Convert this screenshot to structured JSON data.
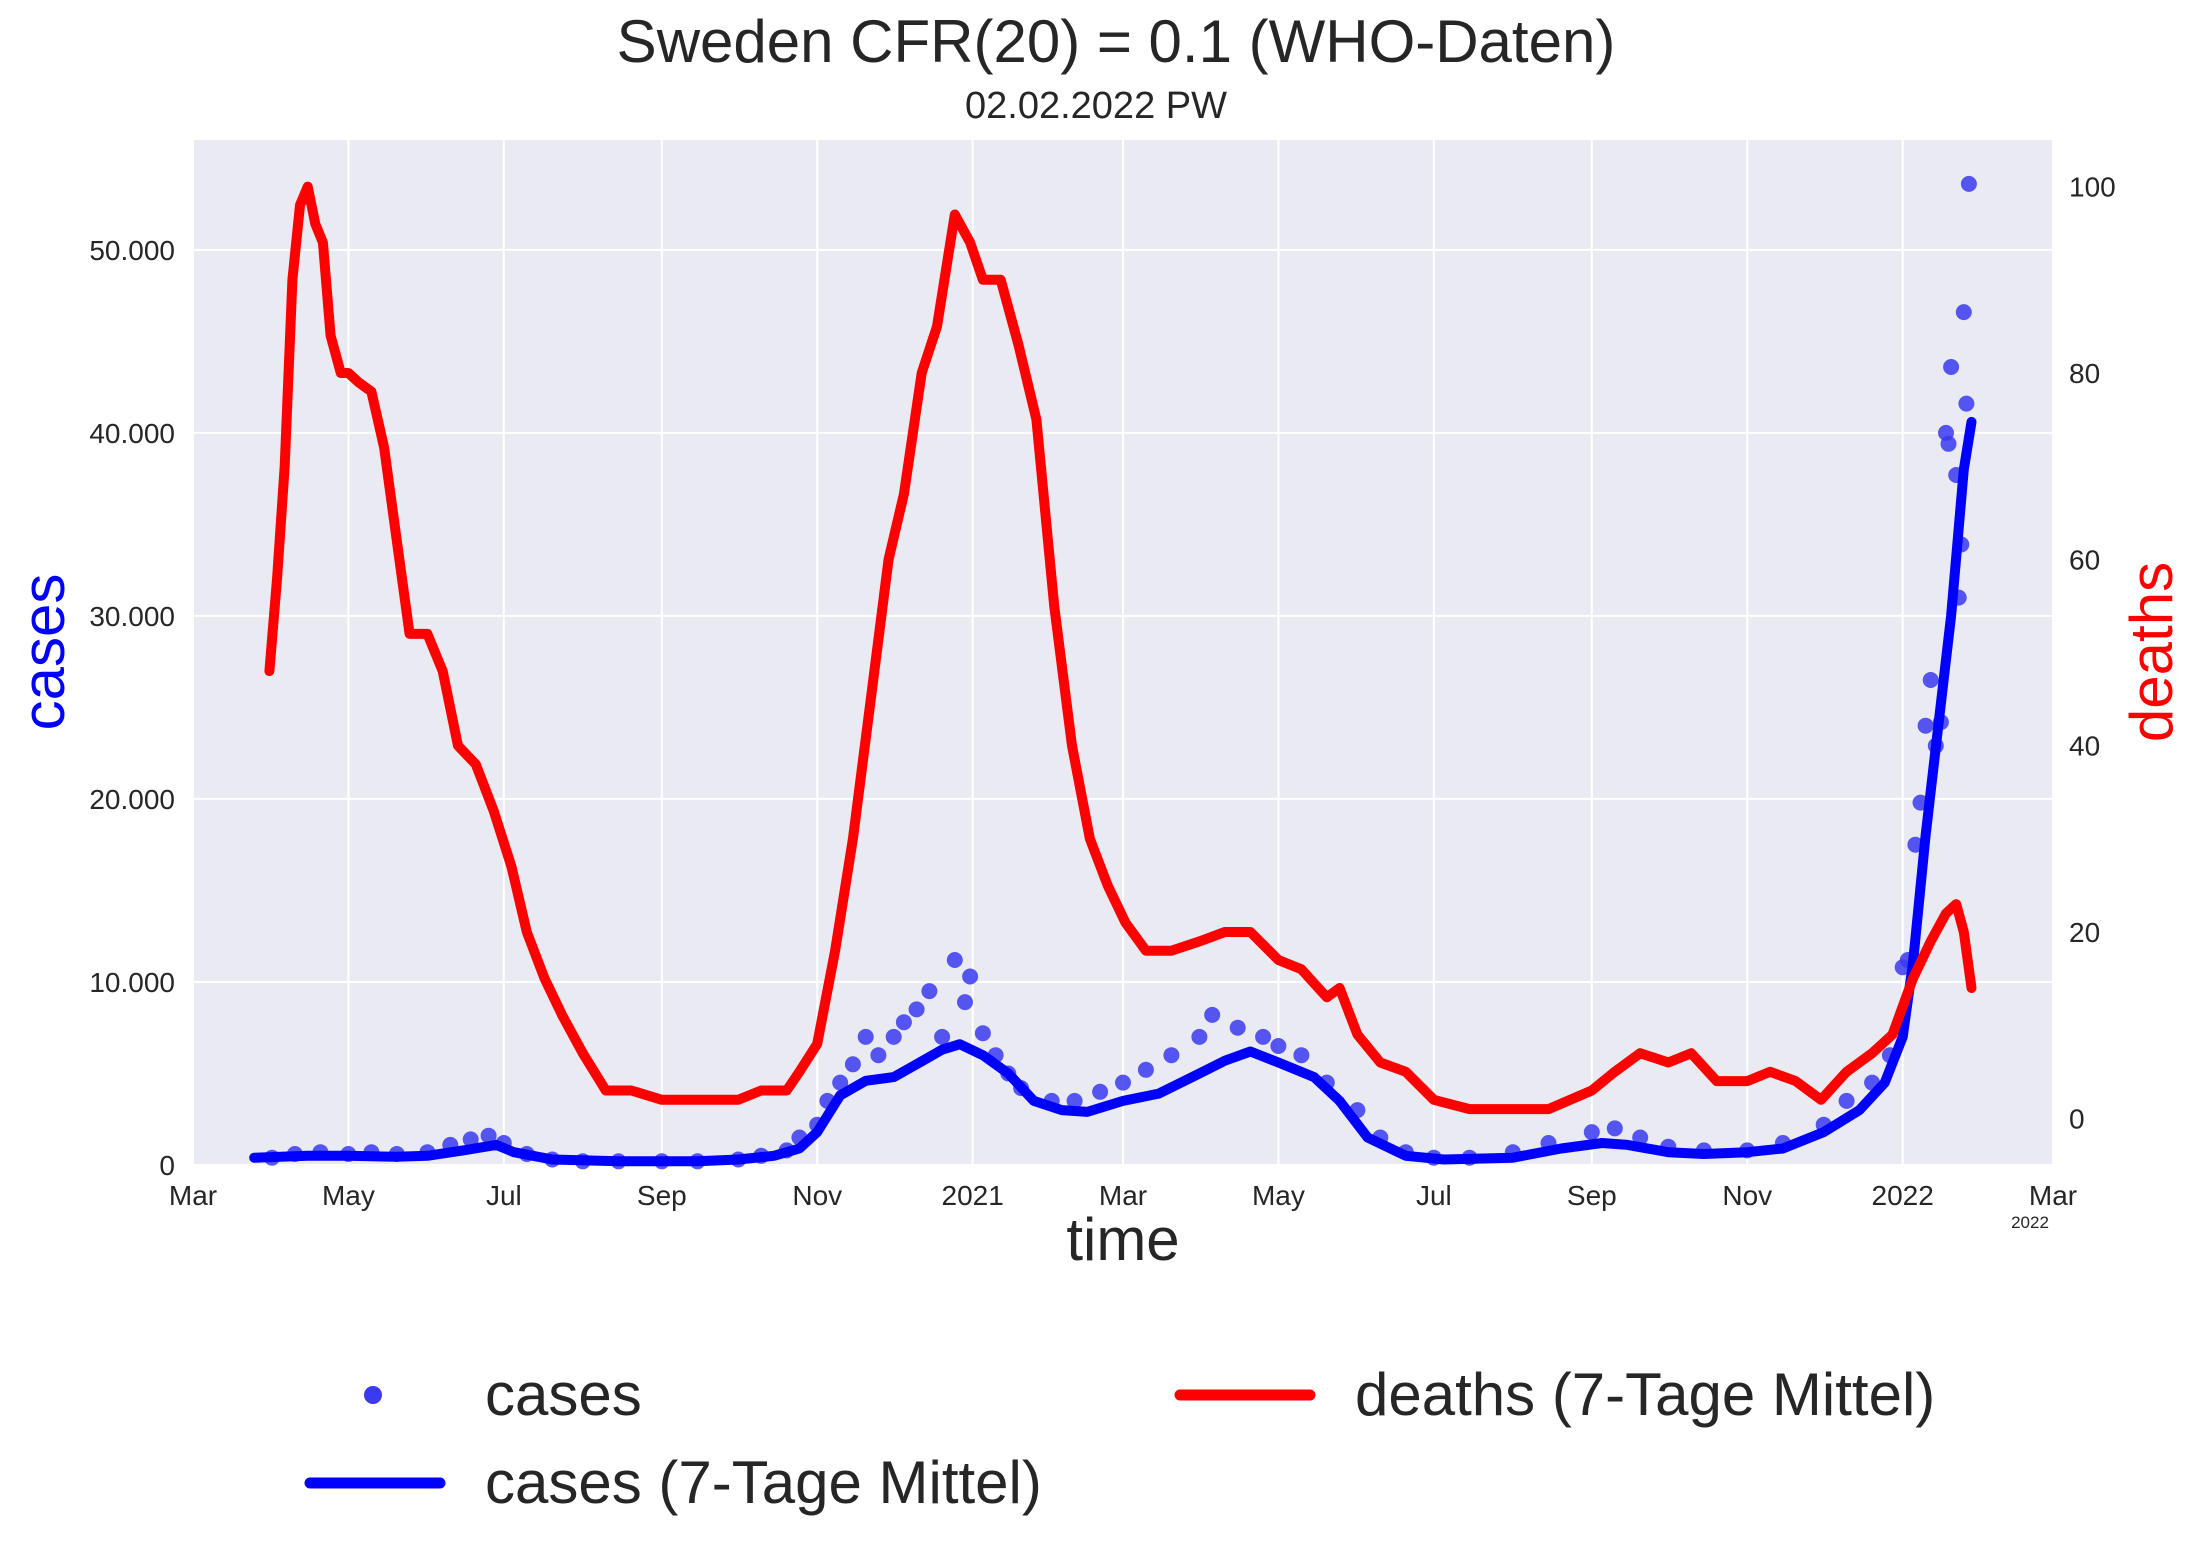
{
  "chart_data": {
    "type": "line",
    "title": "Sweden CFR(20) = 0.1  (WHO-Daten)",
    "subtitle": "02.02.2022 PW",
    "xlabel": "time",
    "ylabel_left": "cases",
    "ylabel_right": "deaths",
    "x_axis": {
      "start": "2020-03-01",
      "end": "2022-03-01",
      "ticks": [
        {
          "date": "2020-03-01",
          "label": "Mar"
        },
        {
          "date": "2020-05-01",
          "label": "May"
        },
        {
          "date": "2020-07-01",
          "label": "Jul"
        },
        {
          "date": "2020-09-01",
          "label": "Sep"
        },
        {
          "date": "2020-11-01",
          "label": "Nov"
        },
        {
          "date": "2021-01-01",
          "label": "2021"
        },
        {
          "date": "2021-03-01",
          "label": "Mar"
        },
        {
          "date": "2021-05-01",
          "label": "May"
        },
        {
          "date": "2021-07-01",
          "label": "Jul"
        },
        {
          "date": "2021-09-01",
          "label": "Sep"
        },
        {
          "date": "2021-11-01",
          "label": "Nov"
        },
        {
          "date": "2022-01-01",
          "label": "2022"
        },
        {
          "date": "2022-03-01",
          "label": "Mar"
        }
      ],
      "offset_label": "2022"
    },
    "y_left": {
      "ylim": [
        0,
        56000
      ],
      "ticks": [
        0,
        10000,
        20000,
        30000,
        40000,
        50000
      ],
      "tick_labels": [
        "0",
        "10.000",
        "20.000",
        "30.000",
        "40.000",
        "50.000"
      ]
    },
    "y_right": {
      "ylim": [
        -5,
        105
      ],
      "ticks": [
        0,
        20,
        40,
        60,
        80,
        100
      ],
      "tick_labels": [
        "0",
        "20",
        "40",
        "60",
        "80",
        "100"
      ]
    },
    "grid": true,
    "legend_placement": "below",
    "colors": {
      "cases_points": "#3a3af0",
      "cases_avg": "#0000ff",
      "deaths_avg": "#ff0000",
      "plot_background": "#eaeaf2",
      "grid": "#ffffff"
    },
    "series": [
      {
        "name": "cases",
        "kind": "scatter",
        "axis": "left",
        "points": [
          [
            "2020-04-01",
            400
          ],
          [
            "2020-04-10",
            600
          ],
          [
            "2020-04-20",
            700
          ],
          [
            "2020-05-01",
            600
          ],
          [
            "2020-05-10",
            700
          ],
          [
            "2020-05-20",
            600
          ],
          [
            "2020-06-01",
            700
          ],
          [
            "2020-06-10",
            1100
          ],
          [
            "2020-06-18",
            1400
          ],
          [
            "2020-06-25",
            1600
          ],
          [
            "2020-07-01",
            1200
          ],
          [
            "2020-07-10",
            600
          ],
          [
            "2020-07-20",
            300
          ],
          [
            "2020-08-01",
            200
          ],
          [
            "2020-08-15",
            200
          ],
          [
            "2020-09-01",
            200
          ],
          [
            "2020-09-15",
            200
          ],
          [
            "2020-10-01",
            300
          ],
          [
            "2020-10-10",
            500
          ],
          [
            "2020-10-20",
            800
          ],
          [
            "2020-10-25",
            1500
          ],
          [
            "2020-11-01",
            2200
          ],
          [
            "2020-11-05",
            3500
          ],
          [
            "2020-11-10",
            4500
          ],
          [
            "2020-11-15",
            5500
          ],
          [
            "2020-11-20",
            7000
          ],
          [
            "2020-11-25",
            6000
          ],
          [
            "2020-12-01",
            7000
          ],
          [
            "2020-12-05",
            7800
          ],
          [
            "2020-12-10",
            8500
          ],
          [
            "2020-12-15",
            9500
          ],
          [
            "2020-12-20",
            7000
          ],
          [
            "2020-12-25",
            11200
          ],
          [
            "2020-12-31",
            10300
          ],
          [
            "2020-12-29",
            8900
          ],
          [
            "2021-01-05",
            7200
          ],
          [
            "2021-01-10",
            6000
          ],
          [
            "2021-01-15",
            5000
          ],
          [
            "2021-01-20",
            4200
          ],
          [
            "2021-02-01",
            3500
          ],
          [
            "2021-02-10",
            3500
          ],
          [
            "2021-02-20",
            4000
          ],
          [
            "2021-03-01",
            4500
          ],
          [
            "2021-03-10",
            5200
          ],
          [
            "2021-03-20",
            6000
          ],
          [
            "2021-03-31",
            7000
          ],
          [
            "2021-04-05",
            8200
          ],
          [
            "2021-04-15",
            7500
          ],
          [
            "2021-04-25",
            7000
          ],
          [
            "2021-05-01",
            6500
          ],
          [
            "2021-05-10",
            6000
          ],
          [
            "2021-05-20",
            4500
          ],
          [
            "2021-06-01",
            3000
          ],
          [
            "2021-06-10",
            1500
          ],
          [
            "2021-06-20",
            700
          ],
          [
            "2021-07-01",
            400
          ],
          [
            "2021-07-15",
            400
          ],
          [
            "2021-08-01",
            700
          ],
          [
            "2021-08-15",
            1200
          ],
          [
            "2021-09-01",
            1800
          ],
          [
            "2021-09-10",
            2000
          ],
          [
            "2021-09-20",
            1500
          ],
          [
            "2021-10-01",
            1000
          ],
          [
            "2021-10-15",
            800
          ],
          [
            "2021-11-01",
            800
          ],
          [
            "2021-11-15",
            1200
          ],
          [
            "2021-12-01",
            2200
          ],
          [
            "2021-12-10",
            3500
          ],
          [
            "2021-12-20",
            4500
          ],
          [
            "2021-12-27",
            6000
          ],
          [
            "2022-01-01",
            10800
          ],
          [
            "2022-01-03",
            11200
          ],
          [
            "2022-01-06",
            17500
          ],
          [
            "2022-01-08",
            19800
          ],
          [
            "2022-01-10",
            24000
          ],
          [
            "2022-01-12",
            26500
          ],
          [
            "2022-01-14",
            22900
          ],
          [
            "2022-01-16",
            24200
          ],
          [
            "2022-01-18",
            40000
          ],
          [
            "2022-01-20",
            43600
          ],
          [
            "2022-01-22",
            37700
          ],
          [
            "2022-01-24",
            33900
          ],
          [
            "2022-01-25",
            46600
          ],
          [
            "2022-01-26",
            41600
          ],
          [
            "2022-01-27",
            53600
          ],
          [
            "2022-01-23",
            31000
          ],
          [
            "2022-01-19",
            39400
          ]
        ]
      },
      {
        "name": "cases (7-Tage Mittel)",
        "kind": "line",
        "axis": "left",
        "points": [
          [
            "2020-03-25",
            400
          ],
          [
            "2020-04-15",
            500
          ],
          [
            "2020-05-01",
            500
          ],
          [
            "2020-05-20",
            450
          ],
          [
            "2020-06-01",
            500
          ],
          [
            "2020-06-15",
            800
          ],
          [
            "2020-06-28",
            1100
          ],
          [
            "2020-07-05",
            700
          ],
          [
            "2020-07-20",
            300
          ],
          [
            "2020-08-15",
            200
          ],
          [
            "2020-09-15",
            200
          ],
          [
            "2020-10-01",
            300
          ],
          [
            "2020-10-15",
            500
          ],
          [
            "2020-10-25",
            900
          ],
          [
            "2020-11-01",
            1800
          ],
          [
            "2020-11-10",
            3800
          ],
          [
            "2020-11-20",
            4600
          ],
          [
            "2020-12-01",
            4800
          ],
          [
            "2020-12-10",
            5500
          ],
          [
            "2020-12-20",
            6300
          ],
          [
            "2020-12-27",
            6600
          ],
          [
            "2021-01-05",
            6000
          ],
          [
            "2021-01-15",
            5000
          ],
          [
            "2021-01-25",
            3500
          ],
          [
            "2021-02-05",
            3000
          ],
          [
            "2021-02-15",
            2900
          ],
          [
            "2021-03-01",
            3500
          ],
          [
            "2021-03-15",
            3900
          ],
          [
            "2021-03-31",
            5000
          ],
          [
            "2021-04-10",
            5700
          ],
          [
            "2021-04-20",
            6200
          ],
          [
            "2021-05-01",
            5600
          ],
          [
            "2021-05-15",
            4800
          ],
          [
            "2021-05-25",
            3500
          ],
          [
            "2021-06-05",
            1500
          ],
          [
            "2021-06-20",
            500
          ],
          [
            "2021-07-05",
            300
          ],
          [
            "2021-08-01",
            400
          ],
          [
            "2021-08-20",
            900
          ],
          [
            "2021-09-05",
            1200
          ],
          [
            "2021-09-15",
            1100
          ],
          [
            "2021-10-01",
            700
          ],
          [
            "2021-10-15",
            600
          ],
          [
            "2021-11-01",
            700
          ],
          [
            "2021-11-15",
            900
          ],
          [
            "2021-12-01",
            1800
          ],
          [
            "2021-12-15",
            3000
          ],
          [
            "2021-12-25",
            4500
          ],
          [
            "2022-01-01",
            7000
          ],
          [
            "2022-01-05",
            11000
          ],
          [
            "2022-01-10",
            18000
          ],
          [
            "2022-01-15",
            24000
          ],
          [
            "2022-01-20",
            30000
          ],
          [
            "2022-01-25",
            38000
          ],
          [
            "2022-01-28",
            40600
          ]
        ]
      },
      {
        "name": "deaths (7-Tage Mittel)",
        "kind": "line",
        "axis": "right",
        "points": [
          [
            "2020-03-31",
            48
          ],
          [
            "2020-04-03",
            58
          ],
          [
            "2020-04-06",
            70
          ],
          [
            "2020-04-09",
            90
          ],
          [
            "2020-04-12",
            98
          ],
          [
            "2020-04-15",
            100
          ],
          [
            "2020-04-18",
            96
          ],
          [
            "2020-04-21",
            94
          ],
          [
            "2020-04-24",
            84
          ],
          [
            "2020-04-28",
            80
          ],
          [
            "2020-05-01",
            80
          ],
          [
            "2020-05-05",
            79
          ],
          [
            "2020-05-10",
            78
          ],
          [
            "2020-05-15",
            72
          ],
          [
            "2020-05-20",
            62
          ],
          [
            "2020-05-25",
            52
          ],
          [
            "2020-06-01",
            52
          ],
          [
            "2020-06-07",
            48
          ],
          [
            "2020-06-13",
            40
          ],
          [
            "2020-06-20",
            38
          ],
          [
            "2020-06-27",
            33
          ],
          [
            "2020-07-04",
            27
          ],
          [
            "2020-07-10",
            20
          ],
          [
            "2020-07-17",
            15
          ],
          [
            "2020-07-24",
            11
          ],
          [
            "2020-08-01",
            7
          ],
          [
            "2020-08-10",
            3
          ],
          [
            "2020-08-20",
            3
          ],
          [
            "2020-09-01",
            2
          ],
          [
            "2020-09-15",
            2
          ],
          [
            "2020-10-01",
            2
          ],
          [
            "2020-10-10",
            3
          ],
          [
            "2020-10-20",
            3
          ],
          [
            "2020-10-25",
            5
          ],
          [
            "2020-11-01",
            8
          ],
          [
            "2020-11-08",
            18
          ],
          [
            "2020-11-15",
            30
          ],
          [
            "2020-11-22",
            45
          ],
          [
            "2020-11-29",
            60
          ],
          [
            "2020-12-05",
            67
          ],
          [
            "2020-12-12",
            80
          ],
          [
            "2020-12-18",
            85
          ],
          [
            "2020-12-25",
            97
          ],
          [
            "2020-12-31",
            94
          ],
          [
            "2021-01-05",
            90
          ],
          [
            "2021-01-12",
            90
          ],
          [
            "2021-01-19",
            83
          ],
          [
            "2021-01-26",
            75
          ],
          [
            "2021-02-02",
            55
          ],
          [
            "2021-02-09",
            40
          ],
          [
            "2021-02-16",
            30
          ],
          [
            "2021-02-23",
            25
          ],
          [
            "2021-03-02",
            21
          ],
          [
            "2021-03-10",
            18
          ],
          [
            "2021-03-20",
            18
          ],
          [
            "2021-03-31",
            19
          ],
          [
            "2021-04-10",
            20
          ],
          [
            "2021-04-20",
            20
          ],
          [
            "2021-05-01",
            17
          ],
          [
            "2021-05-10",
            16
          ],
          [
            "2021-05-20",
            13
          ],
          [
            "2021-05-25",
            14
          ],
          [
            "2021-06-01",
            9
          ],
          [
            "2021-06-10",
            6
          ],
          [
            "2021-06-20",
            5
          ],
          [
            "2021-07-01",
            2
          ],
          [
            "2021-07-15",
            1
          ],
          [
            "2021-08-01",
            1
          ],
          [
            "2021-08-15",
            1
          ],
          [
            "2021-09-01",
            3
          ],
          [
            "2021-09-10",
            5
          ],
          [
            "2021-09-20",
            7
          ],
          [
            "2021-10-01",
            6
          ],
          [
            "2021-10-10",
            7
          ],
          [
            "2021-10-20",
            4
          ],
          [
            "2021-11-01",
            4
          ],
          [
            "2021-11-10",
            5
          ],
          [
            "2021-11-20",
            4
          ],
          [
            "2021-11-30",
            2
          ],
          [
            "2021-12-10",
            5
          ],
          [
            "2021-12-20",
            7
          ],
          [
            "2021-12-28",
            9
          ],
          [
            "2022-01-05",
            15
          ],
          [
            "2022-01-12",
            19
          ],
          [
            "2022-01-18",
            22
          ],
          [
            "2022-01-22",
            23
          ],
          [
            "2022-01-25",
            20
          ],
          [
            "2022-01-28",
            14
          ]
        ]
      }
    ]
  },
  "legend": [
    {
      "label": "cases",
      "marker": "dot",
      "color": "#3a3af0"
    },
    {
      "label": "deaths (7-Tage Mittel)",
      "marker": "line",
      "color": "#ff0000"
    },
    {
      "label": "cases (7-Tage Mittel)",
      "marker": "line",
      "color": "#0000ff"
    }
  ]
}
